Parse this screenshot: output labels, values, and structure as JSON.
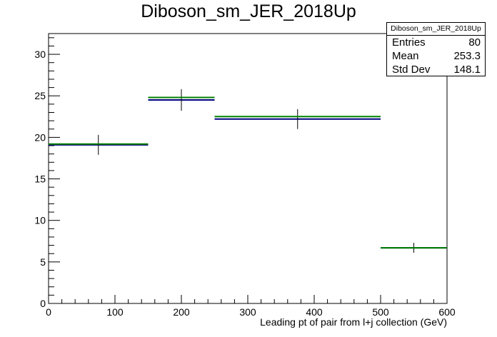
{
  "title": "Diboson_sm_JER_2018Up",
  "stats": {
    "name": "Diboson_sm_JER_2018Up",
    "rows": [
      {
        "label": "Entries",
        "value": "80"
      },
      {
        "label": "Mean",
        "value": "253.3"
      },
      {
        "label": "Std Dev",
        "value": "148.1"
      }
    ]
  },
  "chart_data": {
    "type": "histogram",
    "xlabel": "Leading pt of pair from l+j collection (GeV)",
    "ylabel": "",
    "xlim": [
      0,
      600
    ],
    "ylim": [
      0,
      32.5
    ],
    "x_ticks": [
      0,
      100,
      200,
      300,
      400,
      500,
      600
    ],
    "y_ticks": [
      0,
      5,
      10,
      15,
      20,
      25,
      30
    ],
    "grid": false,
    "bins": [
      {
        "low": 0,
        "high": 150,
        "center": 75
      },
      {
        "low": 150,
        "high": 250,
        "center": 200
      },
      {
        "low": 250,
        "high": 500,
        "center": 375
      },
      {
        "low": 500,
        "high": 600,
        "center": 550
      }
    ],
    "series": [
      {
        "color": "#000080",
        "values": [
          19.1,
          24.5,
          22.2,
          6.7
        ],
        "errors": [
          1.2,
          1.3,
          1.2,
          0.6
        ]
      },
      {
        "color": "#008000",
        "values": [
          19.2,
          24.8,
          22.5,
          6.7
        ]
      }
    ]
  }
}
